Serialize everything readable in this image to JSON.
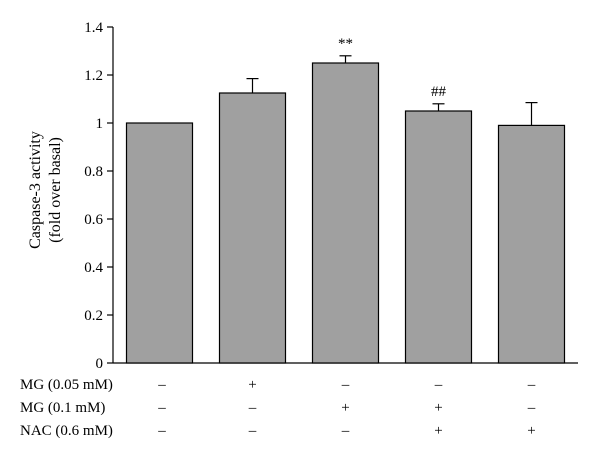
{
  "chart_data": {
    "type": "bar",
    "ylabel_lines": [
      "Caspase-3 activity",
      "(fold over basal)"
    ],
    "ylim": [
      0,
      1.4
    ],
    "yticks": [
      0,
      0.2,
      0.4,
      0.6,
      0.8,
      1,
      1.2,
      1.4
    ],
    "ytick_labels": [
      "0",
      "0.2",
      "0.4",
      "0.6",
      "0.8",
      "1",
      "1.2",
      "1.4"
    ],
    "values": [
      1.0,
      1.125,
      1.25,
      1.05,
      0.99
    ],
    "errors": [
      0.0,
      0.06,
      0.03,
      0.03,
      0.095
    ],
    "annotations": [
      "",
      "",
      "**",
      "##",
      ""
    ],
    "bar_color": "#a0a0a0",
    "grid": false,
    "conditions": [
      {
        "label": "MG (0.05 mM)",
        "values": [
          "–",
          "+",
          "–",
          "–",
          "–"
        ]
      },
      {
        "label": "MG (0.1 mM)",
        "values": [
          "–",
          "–",
          "+",
          "+",
          "–"
        ]
      },
      {
        "label": "NAC (0.6 mM)",
        "values": [
          "–",
          "–",
          "–",
          "+",
          "+"
        ]
      }
    ]
  }
}
